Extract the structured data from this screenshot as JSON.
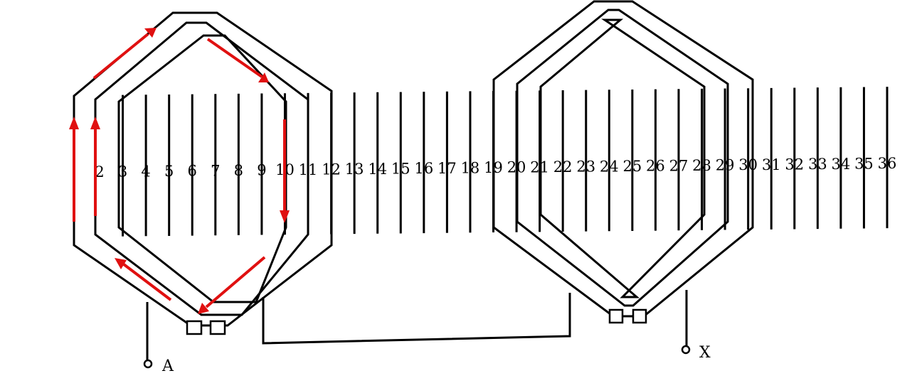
{
  "slots": [
    "2",
    "3",
    "4",
    "5",
    "6",
    "7",
    "8",
    "9",
    "10",
    "11",
    "12",
    "13",
    "14",
    "15",
    "16",
    "17",
    "18",
    "19",
    "20",
    "21",
    "22",
    "23",
    "24",
    "25",
    "26",
    "27",
    "28",
    "29",
    "30",
    "31",
    "32",
    "33",
    "34",
    "35",
    "36"
  ],
  "terminals": {
    "start": "A",
    "end": "X"
  },
  "colors": {
    "ink": "#000000",
    "current_arrow": "#e01010"
  }
}
